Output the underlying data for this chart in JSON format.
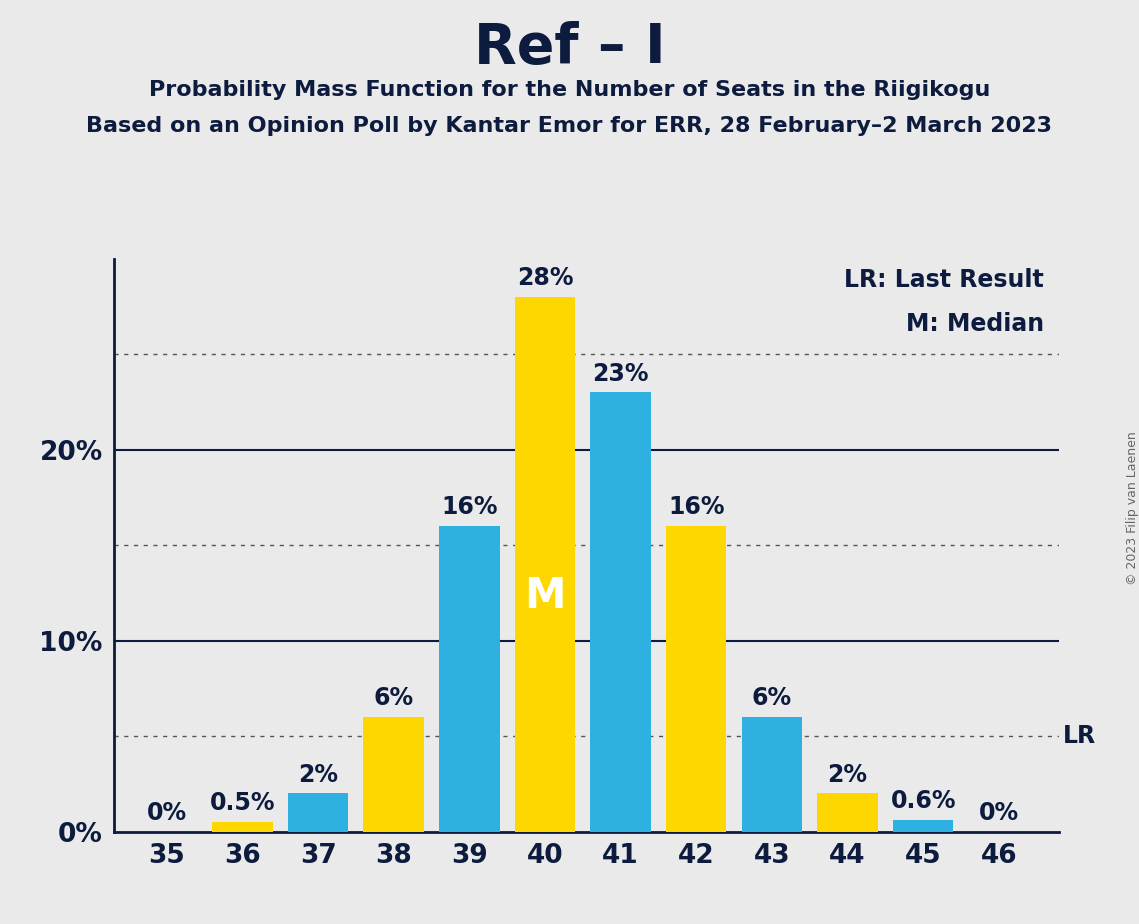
{
  "title": "Ref – I",
  "subtitle1": "Probability Mass Function for the Number of Seats in the Riigikogu",
  "subtitle2": "Based on an Opinion Poll by Kantar Emor for ERR, 28 February–2 March 2023",
  "copyright": "© 2023 Filip van Laenen",
  "seats": [
    35,
    36,
    37,
    38,
    39,
    40,
    41,
    42,
    43,
    44,
    45,
    46
  ],
  "values": [
    0.0,
    0.5,
    2.0,
    6.0,
    16.0,
    28.0,
    23.0,
    16.0,
    6.0,
    2.0,
    0.6,
    0.0
  ],
  "bar_colors": [
    "#FFD700",
    "#FFD700",
    "#2EB0E0",
    "#FFD700",
    "#2EB0E0",
    "#FFD700",
    "#2EB0E0",
    "#FFD700",
    "#2EB0E0",
    "#FFD700",
    "#2EB0E0",
    "#2EB0E0"
  ],
  "labels": [
    "0%",
    "0.5%",
    "2%",
    "6%",
    "16%",
    "28%",
    "23%",
    "16%",
    "6%",
    "2%",
    "0.6%",
    "0%"
  ],
  "median_seat": 40,
  "median_label": "M",
  "ylim_max": 30,
  "background_color": "#EAEAEA",
  "yellow_color": "#FFD700",
  "blue_color": "#2EB0E0",
  "text_color": "#0D1B3E",
  "title_fontsize": 40,
  "subtitle_fontsize": 16,
  "bar_label_fontsize": 17,
  "axis_tick_fontsize": 19,
  "legend_fontsize": 17,
  "median_label_fontsize": 30,
  "copyright_fontsize": 9,
  "bar_width": 0.8
}
